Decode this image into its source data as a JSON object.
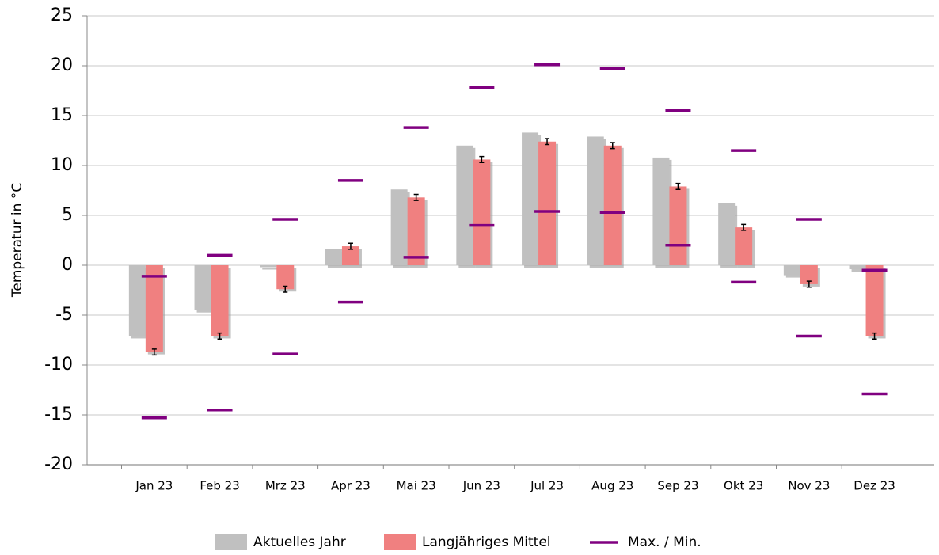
{
  "chart_data": {
    "type": "bar",
    "y_label": "Temperatur in °C",
    "categories": [
      "Jan 23",
      "Feb 23",
      "Mrz 23",
      "Apr 23",
      "Mai 23",
      "Jun 23",
      "Jul 23",
      "Aug 23",
      "Sep 23",
      "Okt 23",
      "Nov 23",
      "Dez 23"
    ],
    "series": [
      {
        "name": "Aktuelles Jahr",
        "color": "#c0c0c0",
        "values": [
          -7.1,
          -4.5,
          -0.2,
          1.6,
          7.6,
          12.0,
          13.3,
          12.9,
          10.8,
          6.2,
          -1.0,
          -0.4
        ]
      },
      {
        "name": "Langjähriges Mittel",
        "color": "#f08080",
        "values": [
          -8.7,
          -7.1,
          -2.4,
          1.9,
          6.8,
          10.6,
          12.4,
          12.0,
          7.9,
          3.8,
          -1.9,
          -7.1
        ],
        "errors": [
          0.3,
          0.3,
          0.3,
          0.3,
          0.3,
          0.3,
          0.3,
          0.3,
          0.3,
          0.3,
          0.3,
          0.3
        ]
      },
      {
        "name": "Max. / Min.",
        "color": "#800080",
        "max": [
          -1.1,
          1.0,
          4.6,
          8.5,
          13.8,
          17.8,
          20.1,
          19.7,
          15.5,
          11.5,
          4.6,
          -0.5
        ],
        "min": [
          -15.3,
          -14.5,
          -8.9,
          -3.7,
          0.8,
          4.0,
          5.4,
          5.3,
          2.0,
          -1.7,
          -7.1,
          -12.9
        ]
      }
    ],
    "ylim": [
      -20,
      25
    ],
    "yticks": [
      -20,
      -15,
      -10,
      -5,
      0,
      5,
      10,
      15,
      20,
      25
    ],
    "grid": true
  }
}
